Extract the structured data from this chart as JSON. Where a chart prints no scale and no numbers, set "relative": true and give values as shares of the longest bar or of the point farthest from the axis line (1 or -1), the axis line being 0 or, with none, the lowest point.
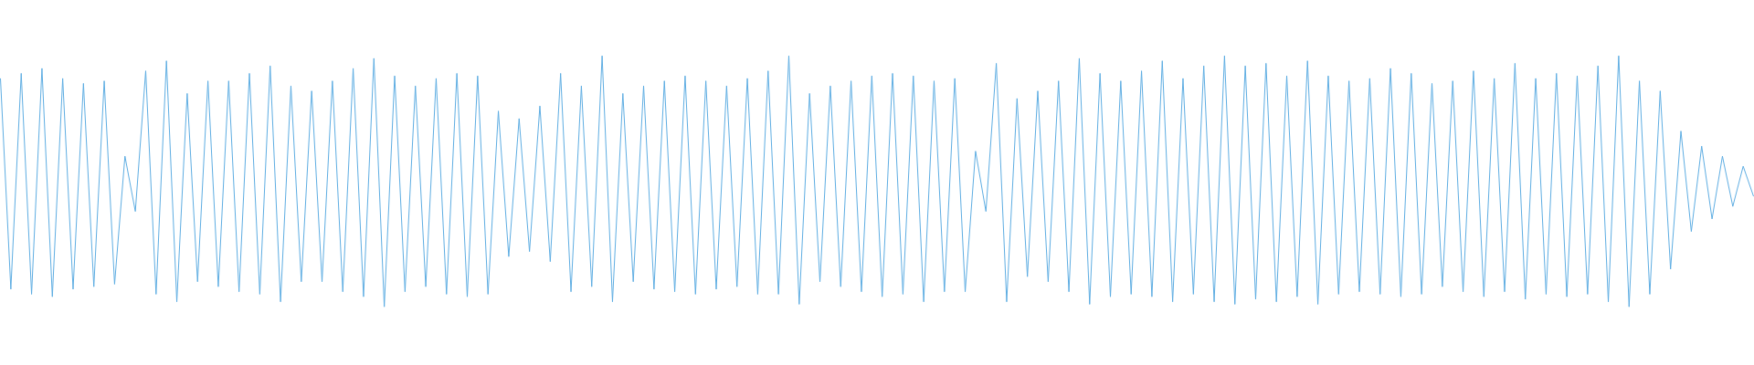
{
  "chart_data": {
    "type": "line",
    "relative": true,
    "color": "#5dade2",
    "categories": [
      null,
      null,
      null,
      null,
      null,
      null,
      null,
      null,
      null,
      null,
      null,
      null,
      null,
      null,
      null,
      null,
      null,
      null,
      null,
      null,
      null,
      null,
      null,
      null,
      null,
      null,
      null,
      null,
      null,
      null,
      null,
      null,
      null,
      null,
      null,
      null,
      null,
      null,
      null,
      null,
      null,
      null,
      null,
      null,
      null,
      null,
      null,
      null,
      null,
      null,
      null,
      null,
      null,
      null,
      null,
      null,
      null,
      null,
      null,
      null,
      null,
      null,
      null,
      null,
      null,
      null,
      null,
      null,
      null,
      null,
      null,
      null,
      null,
      null,
      null,
      null,
      null,
      null,
      null,
      null,
      null,
      null,
      null,
      null,
      null,
      null,
      null,
      null,
      null,
      null,
      null,
      null,
      null,
      null,
      null,
      null,
      null,
      null,
      null,
      null,
      null,
      null,
      null,
      null,
      null,
      null,
      null,
      null,
      null,
      null,
      null,
      null,
      null,
      null,
      null,
      null,
      null,
      null,
      null,
      null,
      null,
      null,
      null,
      null,
      null,
      null,
      null,
      null,
      null,
      null,
      null,
      null,
      null,
      null,
      null,
      null,
      null,
      null,
      null,
      null,
      null,
      null,
      null,
      null,
      null,
      null,
      null,
      null,
      null,
      null,
      null,
      null,
      null,
      null,
      null,
      null,
      null,
      null,
      null,
      null,
      null,
      null,
      null,
      null,
      null,
      null,
      null,
      null,
      null,
      null
    ],
    "values": [
      0.91,
      0.07,
      0.93,
      0.05,
      0.95,
      0.04,
      0.91,
      0.07,
      0.89,
      0.08,
      0.9,
      0.09,
      0.6,
      0.38,
      0.94,
      0.05,
      0.98,
      0.02,
      0.85,
      0.1,
      0.9,
      0.08,
      0.9,
      0.06,
      0.93,
      0.05,
      0.96,
      0.02,
      0.88,
      0.1,
      0.86,
      0.1,
      0.9,
      0.06,
      0.95,
      0.04,
      0.99,
      0,
      0.92,
      0.06,
      0.88,
      0.08,
      0.91,
      0.05,
      0.93,
      0.04,
      0.92,
      0.05,
      0.78,
      0.2,
      0.75,
      0.22,
      0.8,
      0.18,
      0.93,
      0.06,
      0.88,
      0.08,
      1.0,
      0.02,
      0.85,
      0.1,
      0.88,
      0.07,
      0.9,
      0.06,
      0.92,
      0.05,
      0.9,
      0.07,
      0.88,
      0.08,
      0.91,
      0.05,
      0.94,
      0.05,
      1.0,
      0.01,
      0.85,
      0.1,
      0.88,
      0.08,
      0.9,
      0.06,
      0.92,
      0.04,
      0.93,
      0.05,
      0.92,
      0.02,
      0.9,
      0.06,
      0.91,
      0.06,
      0.62,
      0.38,
      0.97,
      0.02,
      0.83,
      0.12,
      0.86,
      0.1,
      0.9,
      0.06,
      0.99,
      0.01,
      0.93,
      0.04,
      0.9,
      0.05,
      0.94,
      0.04,
      0.98,
      0.02,
      0.91,
      0.05,
      0.96,
      0.02,
      1.0,
      0.01,
      0.96,
      0.03,
      0.97,
      0.02,
      0.92,
      0.04,
      0.98,
      0.01,
      0.92,
      0.05,
      0.9,
      0.06,
      0.91,
      0.05,
      0.95,
      0.04,
      0.93,
      0.05,
      0.89,
      0.08,
      0.9,
      0.06,
      0.94,
      0.04,
      0.91,
      0.06,
      0.97,
      0.03,
      0.91,
      0.05,
      0.93,
      0.04,
      0.92,
      0.05,
      0.96,
      0.02,
      1.0,
      0,
      0.9,
      0.05,
      0.86,
      0.15,
      0.7,
      0.3,
      0.64,
      0.35,
      0.6,
      0.4,
      0.56,
      0.44
    ]
  }
}
